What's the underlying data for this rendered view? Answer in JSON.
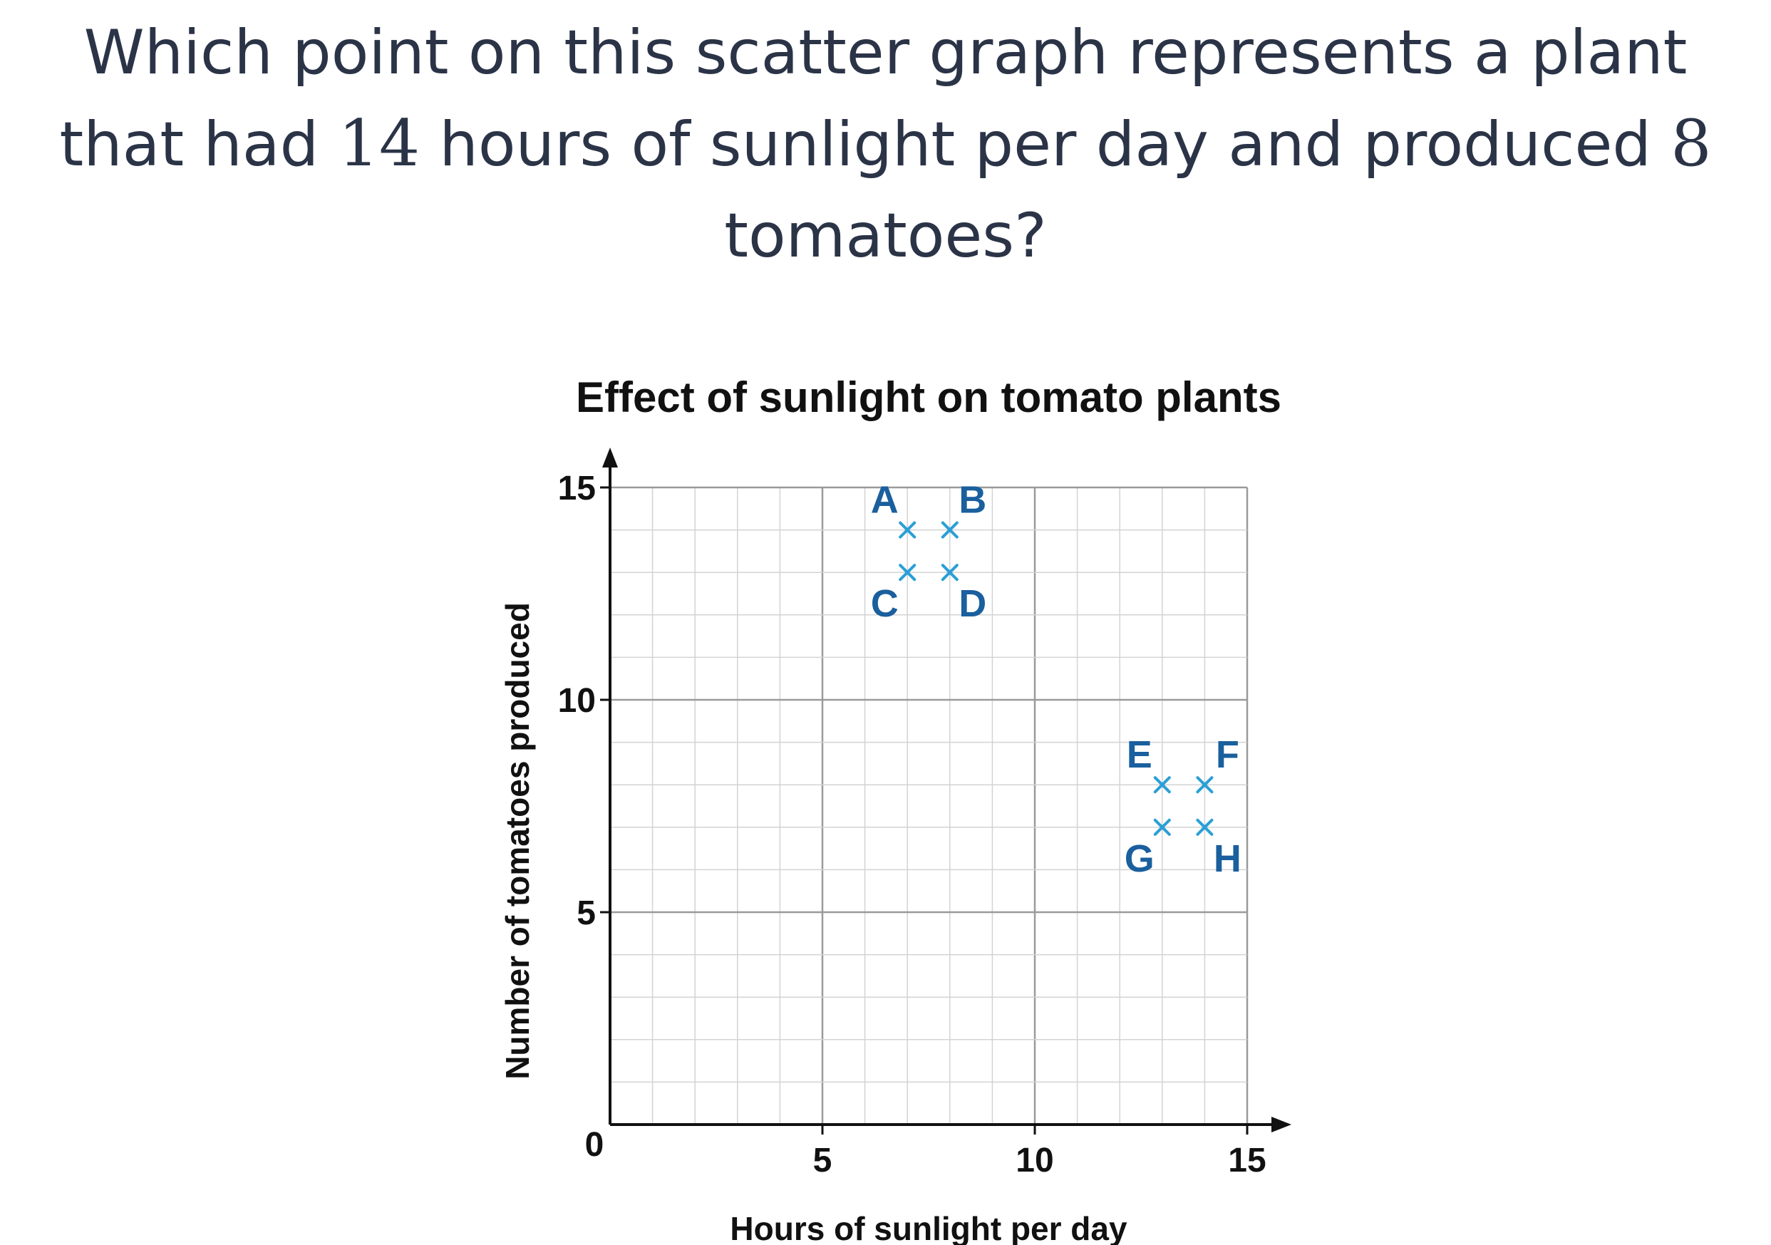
{
  "question": {
    "part1": "Which point on this scatter graph represents a plant that had ",
    "hours": "14",
    "part2": " hours of sunlight per day and produced ",
    "tomatoes": "8",
    "part3": " tomatoes?"
  },
  "colors": {
    "question_text": "#2b3447",
    "marker": "#2a9fd6",
    "label": "#1a5f9e",
    "grid_minor": "#d3d3d3",
    "grid_major": "#9a9a9a"
  },
  "chart_data": {
    "type": "scatter",
    "title": "Effect of sunlight on tomato plants",
    "xlabel": "Hours of sunlight per day",
    "ylabel": "Number of tomatoes produced",
    "xlim": [
      0,
      15
    ],
    "ylim": [
      0,
      15
    ],
    "xticks": [
      "0",
      "5",
      "10",
      "15"
    ],
    "yticks": [
      "5",
      "10",
      "15"
    ],
    "grid": true,
    "points": [
      {
        "label": "A",
        "x": 7,
        "y": 14
      },
      {
        "label": "B",
        "x": 8,
        "y": 14
      },
      {
        "label": "C",
        "x": 7,
        "y": 13
      },
      {
        "label": "D",
        "x": 8,
        "y": 13
      },
      {
        "label": "E",
        "x": 13,
        "y": 8
      },
      {
        "label": "F",
        "x": 14,
        "y": 8
      },
      {
        "label": "G",
        "x": 13,
        "y": 7
      },
      {
        "label": "H",
        "x": 14,
        "y": 7
      }
    ]
  }
}
